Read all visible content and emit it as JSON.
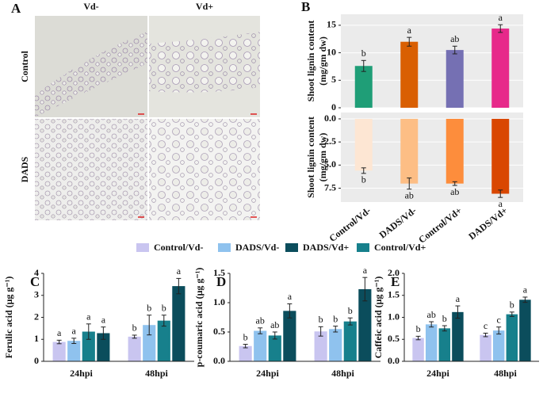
{
  "panel_a": {
    "label": "A",
    "columns": [
      "Vd-",
      "Vd+"
    ],
    "rows": [
      "Control",
      "DADS"
    ]
  },
  "panel_b_label": "B",
  "legend": [
    {
      "name": "Control/Vd-",
      "color": "#c9c5f0"
    },
    {
      "name": "DADS/Vd-",
      "color": "#8fc2ee"
    },
    {
      "name": "DADS/Vd+",
      "color": "#0b4d5c"
    },
    {
      "name": "Control/Vd+",
      "color": "#17808c"
    }
  ],
  "chart_data": [
    {
      "type": "bar",
      "ylabel": [
        "Shoot lignin content",
        "(mg/gm dw)"
      ],
      "ylim": [
        0,
        17
      ],
      "yticks": [
        0,
        5,
        10,
        15
      ],
      "grid": true,
      "values": [
        7.6,
        12,
        10.5,
        14.4
      ],
      "errors": [
        1,
        0.8,
        0.7,
        0.7
      ],
      "letters": [
        "b",
        "a",
        "ab",
        "a"
      ],
      "colors": [
        "#1f9e77",
        "#d95f02",
        "#7570b3",
        "#e7298a"
      ]
    },
    {
      "type": "bar",
      "ylabel": [
        "Shoot lignin content",
        "(mg/gm dw)"
      ],
      "ylim": [
        0,
        9
      ],
      "inverted": true,
      "grid": true,
      "yticks": [
        {
          "value": 0,
          "label": "0.0"
        },
        2.5,
        {
          "value": 5,
          "label": "5.0"
        },
        7.5
      ],
      "categories": [
        "Control/Vd-",
        "DADS/Vd-",
        "Control/Vd+",
        "DADS/Vd+"
      ],
      "values": [
        5.6,
        7,
        7,
        8.1
      ],
      "errors": [
        0.3,
        0.6,
        0.2,
        0.4
      ],
      "letters": [
        "b",
        "ab",
        "ab",
        "a"
      ],
      "colors": [
        "#fde6d3",
        "#fdbe85",
        "#fd8d3c",
        "#d94701"
      ]
    },
    {
      "type": "bar",
      "panel": "C",
      "ylabel": [
        "Ferulic acid (μg g⁻¹)"
      ],
      "ylim": [
        0,
        4
      ],
      "yticks": [
        0,
        1,
        2,
        3,
        4
      ],
      "categories": [
        "24hpi",
        "48hpi"
      ],
      "series": [
        {
          "color": "#c9c5f0",
          "values": [
            0.88,
            1.12
          ],
          "errors": [
            0.08,
            0.07
          ],
          "letters": [
            "a",
            "b"
          ]
        },
        {
          "color": "#8fc2ee",
          "values": [
            0.93,
            1.65
          ],
          "errors": [
            0.12,
            0.45
          ],
          "letters": [
            "a",
            "b"
          ]
        },
        {
          "color": "#17808c",
          "values": [
            1.35,
            1.85
          ],
          "errors": [
            0.35,
            0.25
          ],
          "letters": [
            "a",
            "b"
          ]
        },
        {
          "color": "#0b4d5c",
          "values": [
            1.28,
            3.42
          ],
          "errors": [
            0.28,
            0.35
          ],
          "letters": [
            "a",
            "a"
          ]
        }
      ]
    },
    {
      "type": "bar",
      "panel": "D",
      "ylabel": [
        "p-coumaric acid (μg g⁻¹)"
      ],
      "ylim": [
        0,
        1.5
      ],
      "yticks": [
        {
          "value": 0,
          "label": "0.0"
        },
        0.5,
        {
          "value": 1,
          "label": "1.0"
        },
        1.5
      ],
      "categories": [
        "24hpi",
        "48hpi"
      ],
      "series": [
        {
          "color": "#c9c5f0",
          "values": [
            0.26,
            0.51
          ],
          "errors": [
            0.03,
            0.08
          ],
          "letters": [
            "b",
            "b"
          ]
        },
        {
          "color": "#8fc2ee",
          "values": [
            0.52,
            0.55
          ],
          "errors": [
            0.05,
            0.05
          ],
          "letters": [
            "ab",
            "b"
          ]
        },
        {
          "color": "#17808c",
          "values": [
            0.44,
            0.68
          ],
          "errors": [
            0.06,
            0.06
          ],
          "letters": [
            "ab",
            "b"
          ]
        },
        {
          "color": "#0b4d5c",
          "values": [
            0.86,
            1.23
          ],
          "errors": [
            0.12,
            0.2
          ],
          "letters": [
            "a",
            "a"
          ]
        }
      ]
    },
    {
      "type": "bar",
      "panel": "E",
      "ylabel": [
        "Caffeic acid (μg g⁻¹)"
      ],
      "ylim": [
        0,
        2
      ],
      "yticks": [
        {
          "value": 0,
          "label": "0.0"
        },
        0.5,
        {
          "value": 1,
          "label": "1.0"
        },
        1.5,
        {
          "value": 2,
          "label": "2.0"
        }
      ],
      "categories": [
        "24hpi",
        "48hpi"
      ],
      "series": [
        {
          "color": "#c9c5f0",
          "values": [
            0.53,
            0.6
          ],
          "errors": [
            0.04,
            0.04
          ],
          "letters": [
            "b",
            "c"
          ]
        },
        {
          "color": "#8fc2ee",
          "values": [
            0.84,
            0.7
          ],
          "errors": [
            0.06,
            0.08
          ],
          "letters": [
            "ab",
            "c"
          ]
        },
        {
          "color": "#17808c",
          "values": [
            0.75,
            1.07
          ],
          "errors": [
            0.06,
            0.05
          ],
          "letters": [
            "b",
            "b"
          ]
        },
        {
          "color": "#0b4d5c",
          "values": [
            1.12,
            1.4
          ],
          "errors": [
            0.14,
            0.06
          ],
          "letters": [
            "a",
            "a"
          ]
        }
      ]
    }
  ]
}
